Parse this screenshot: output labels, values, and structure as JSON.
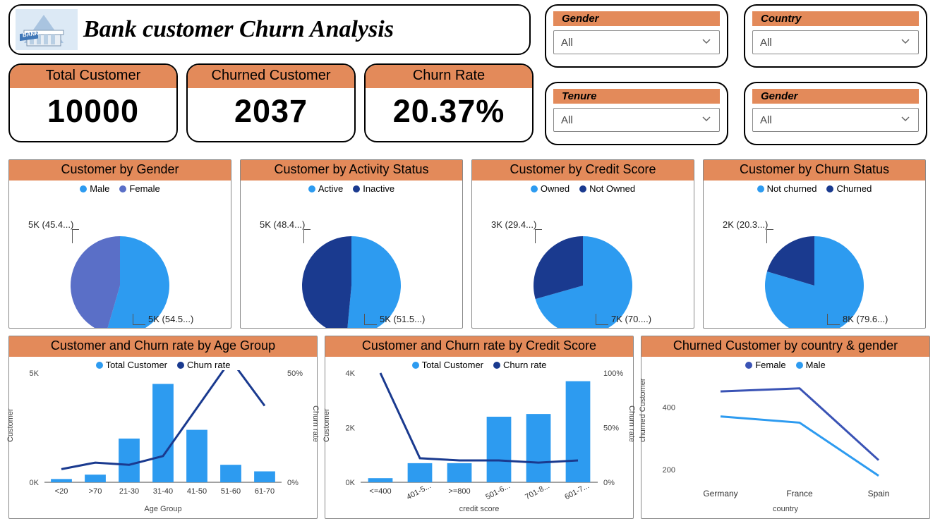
{
  "colors": {
    "accent_bg": "#e38a5a",
    "text": "#222222",
    "blue_light": "#2d9bf0",
    "blue_mid": "#5a6fc7",
    "blue_dark": "#1a3a8f",
    "border": "#000000",
    "grid": "#cfcfcf"
  },
  "title": {
    "text": "Bank customer Churn Analysis"
  },
  "metrics": {
    "total": {
      "label": "Total Customer",
      "value": "10000"
    },
    "churned": {
      "label": "Churned Customer",
      "value": "2037"
    },
    "rate": {
      "label": "Churn Rate",
      "value": "20.37%"
    }
  },
  "slicers": {
    "gender1": {
      "label": "Gender",
      "value": "All"
    },
    "country": {
      "label": "Country",
      "value": "All"
    },
    "tenure": {
      "label": "Tenure",
      "value": "All"
    },
    "gender2": {
      "label": "Gender",
      "value": "All"
    }
  },
  "pies": {
    "gender": {
      "title": "Customer by Gender",
      "legend": [
        {
          "label": "Male",
          "color": "#2d9bf0"
        },
        {
          "label": "Female",
          "color": "#5a6fc7"
        }
      ],
      "slices": [
        {
          "value": 54.5,
          "color": "#2d9bf0",
          "label": "5K (54.5...)"
        },
        {
          "value": 45.5,
          "color": "#5a6fc7",
          "label": "5K (45.4...)"
        }
      ]
    },
    "activity": {
      "title": "Customer by Activity Status",
      "legend": [
        {
          "label": "Active",
          "color": "#2d9bf0"
        },
        {
          "label": "Inactive",
          "color": "#1a3a8f"
        }
      ],
      "slices": [
        {
          "value": 51.5,
          "color": "#2d9bf0",
          "label": "5K (51.5...)"
        },
        {
          "value": 48.5,
          "color": "#1a3a8f",
          "label": "5K (48.4...)"
        }
      ]
    },
    "credit": {
      "title": "Customer by Credit Score",
      "legend": [
        {
          "label": "Owned",
          "color": "#2d9bf0"
        },
        {
          "label": "Not Owned",
          "color": "#1a3a8f"
        }
      ],
      "slices": [
        {
          "value": 70.6,
          "color": "#2d9bf0",
          "label": "7K (70....)"
        },
        {
          "value": 29.4,
          "color": "#1a3a8f",
          "label": "3K (29.4...)"
        }
      ]
    },
    "churn": {
      "title": "Customer by Churn Status",
      "legend": [
        {
          "label": "Not churned",
          "color": "#2d9bf0"
        },
        {
          "label": "Churned",
          "color": "#1a3a8f"
        }
      ],
      "slices": [
        {
          "value": 79.6,
          "color": "#2d9bf0",
          "label": "8K (79.6...)"
        },
        {
          "value": 20.4,
          "color": "#1a3a8f",
          "label": "2K (20.3...)"
        }
      ]
    }
  },
  "combo_age": {
    "title": "Customer and Churn rate by Age Group",
    "legend": [
      {
        "label": "Total Customer",
        "color": "#2d9bf0"
      },
      {
        "label": "Churn rate",
        "color": "#1a3a8f"
      }
    ],
    "x_label": "Age Group",
    "y_left_label": "Customer",
    "y_right_label": "Churn rate",
    "y_left": {
      "max": 5000,
      "ticks": [
        0,
        5000
      ],
      "tick_labels": [
        "0K",
        "5K"
      ]
    },
    "y_right": {
      "max": 50,
      "ticks": [
        0,
        50
      ],
      "tick_labels": [
        "0%",
        "50%"
      ]
    },
    "categories": [
      "<20",
      ">70",
      "21-30",
      "31-40",
      "41-50",
      "51-60",
      "61-70"
    ],
    "bars": [
      150,
      350,
      2000,
      4500,
      2400,
      800,
      500
    ],
    "line": [
      6,
      9,
      8,
      12,
      34,
      56,
      35
    ],
    "bar_color": "#2d9bf0",
    "line_color": "#1a3a8f"
  },
  "combo_credit": {
    "title": "Customer and Churn rate by Credit Score",
    "legend": [
      {
        "label": "Total Customer",
        "color": "#2d9bf0"
      },
      {
        "label": "Churn rate",
        "color": "#1a3a8f"
      }
    ],
    "x_label": "credit score",
    "y_left_label": "Customer",
    "y_right_label": "Churn rate",
    "y_left": {
      "max": 4000,
      "ticks": [
        0,
        2000,
        4000
      ],
      "tick_labels": [
        "0K",
        "2K",
        "4K"
      ]
    },
    "y_right": {
      "max": 100,
      "ticks": [
        0,
        50,
        100
      ],
      "tick_labels": [
        "0%",
        "50%",
        "100%"
      ]
    },
    "categories": [
      "<=400",
      "401-5...",
      ">=800",
      "501-6...",
      "701-8...",
      "601-7..."
    ],
    "bars": [
      150,
      700,
      700,
      2400,
      2500,
      3700
    ],
    "line": [
      100,
      22,
      20,
      20,
      18,
      20
    ],
    "bar_color": "#2d9bf0",
    "line_color": "#1a3a8f"
  },
  "line_country": {
    "title": "Churned Customer by country & gender",
    "legend": [
      {
        "label": "Female",
        "color": "#3a53b5"
      },
      {
        "label": "Male",
        "color": "#2d9bf0"
      }
    ],
    "x_label": "country",
    "y_label": "churned Customer",
    "y": {
      "min": 150,
      "max": 500,
      "ticks": [
        200,
        400
      ],
      "tick_labels": [
        "200",
        "400"
      ]
    },
    "categories": [
      "Germany",
      "France",
      "Spain"
    ],
    "series": {
      "Female": {
        "color": "#3a53b5",
        "values": [
          450,
          460,
          230
        ]
      },
      "Male": {
        "color": "#2d9bf0",
        "values": [
          370,
          350,
          180
        ]
      }
    }
  }
}
